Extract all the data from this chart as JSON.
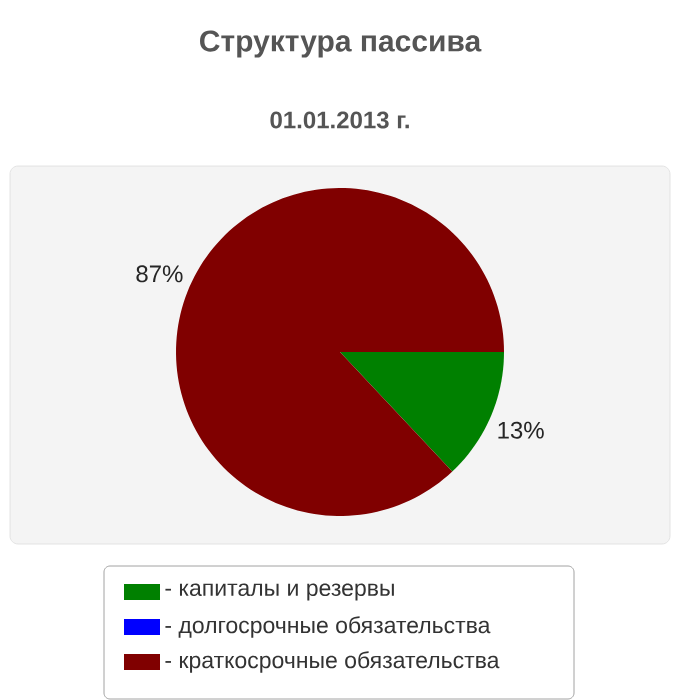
{
  "chart_data": {
    "type": "pie",
    "title": "Структура пассива",
    "subtitle": "01.01.2013 г.",
    "categories": [
      "- капиталы и резервы",
      "- долгосрочные обязательства",
      "- краткосрочные обязательства"
    ],
    "values": [
      13,
      0,
      87
    ],
    "colors": [
      "#008000",
      "#0000ff",
      "#800000"
    ],
    "value_labels": [
      "13%",
      null,
      "87%"
    ],
    "legend": "bottom"
  }
}
